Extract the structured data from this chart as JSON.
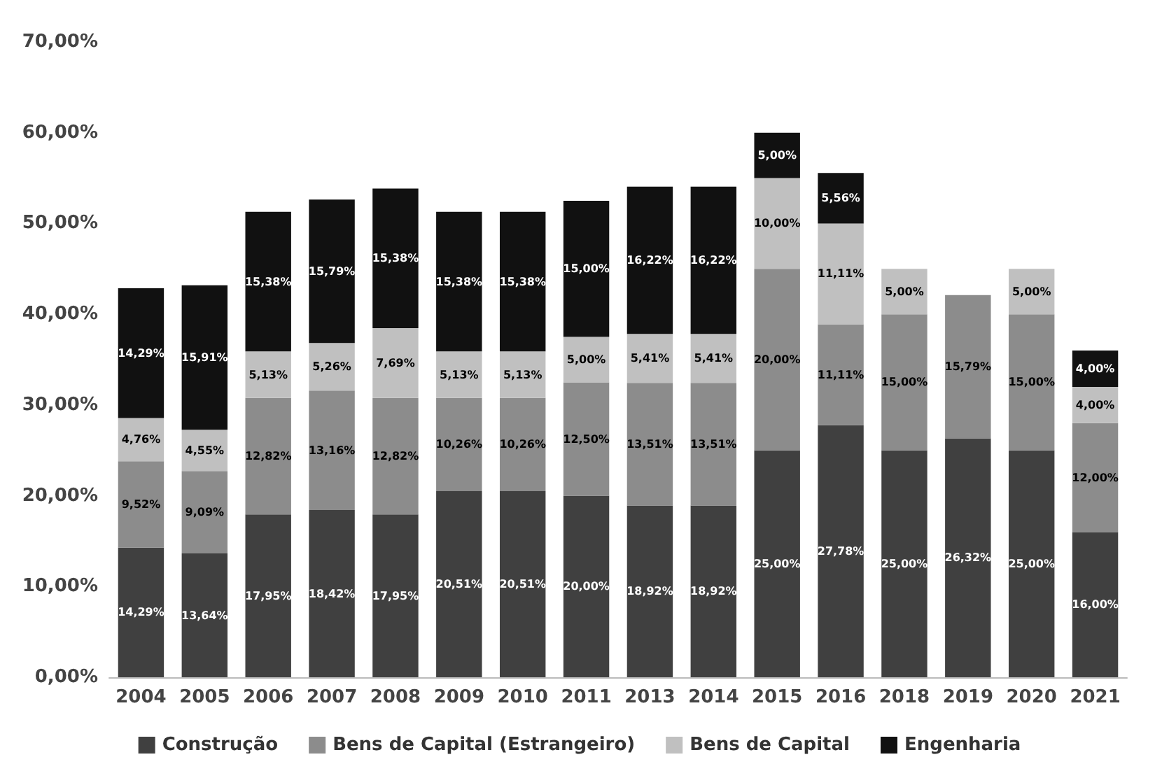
{
  "chart_data": {
    "type": "bar",
    "stacked": true,
    "categories": [
      "2004",
      "2005",
      "2006",
      "2007",
      "2008",
      "2009",
      "2010",
      "2011",
      "2013",
      "2014",
      "2015",
      "2016",
      "2018",
      "2019",
      "2020",
      "2021"
    ],
    "ylim": [
      0,
      70
    ],
    "yticks": [
      {
        "value": 0,
        "label": "0,00%"
      },
      {
        "value": 10,
        "label": "10,00%"
      },
      {
        "value": 20,
        "label": "20,00%"
      },
      {
        "value": 30,
        "label": "30,00%"
      },
      {
        "value": 40,
        "label": "40,00%"
      },
      {
        "value": 50,
        "label": "50,00%"
      },
      {
        "value": 60,
        "label": "60,00%"
      },
      {
        "value": 70,
        "label": "70,00%"
      }
    ],
    "grid": false,
    "legend": "bottom",
    "series": [
      {
        "name": "Construção",
        "color": "#404040",
        "values": [
          14.29,
          13.64,
          17.95,
          18.42,
          17.95,
          20.51,
          20.51,
          20.0,
          18.92,
          18.92,
          25.0,
          27.78,
          25.0,
          26.32,
          25.0,
          16.0
        ],
        "value_labels": [
          "14,29%",
          "13,64%",
          "17,95%",
          "18,42%",
          "17,95%",
          "20,51%",
          "20,51%",
          "20,00%",
          "18,92%",
          "18,92%",
          "25,00%",
          "27,78%",
          "25,00%",
          "26,32%",
          "25,00%",
          "16,00%"
        ]
      },
      {
        "name": "Bens de Capital (Estrangeiro)",
        "color": "#8c8c8c",
        "values": [
          9.52,
          9.09,
          12.82,
          13.16,
          12.82,
          10.26,
          10.26,
          12.5,
          13.51,
          13.51,
          20.0,
          11.11,
          15.0,
          15.79,
          15.0,
          12.0
        ],
        "value_labels": [
          "9,52%",
          "9,09%",
          "12,82%",
          "13,16%",
          "12,82%",
          "10,26%",
          "10,26%",
          "12,50%",
          "13,51%",
          "13,51%",
          "20,00%",
          "11,11%",
          "15,00%",
          "15,79%",
          "15,00%",
          "12,00%"
        ]
      },
      {
        "name": "Bens de Capital",
        "color": "#c0c0c0",
        "values": [
          4.76,
          4.55,
          5.13,
          5.26,
          7.69,
          5.13,
          5.13,
          5.0,
          5.41,
          5.41,
          10.0,
          11.11,
          5.0,
          null,
          5.0,
          4.0
        ],
        "value_labels": [
          "4,76%",
          "4,55%",
          "5,13%",
          "5,26%",
          "7,69%",
          "5,13%",
          "5,13%",
          "5,00%",
          "5,41%",
          "5,41%",
          "10,00%",
          "11,11%",
          "5,00%",
          null,
          "5,00%",
          "4,00%"
        ]
      },
      {
        "name": "Engenharia",
        "color": "#111111",
        "values": [
          14.29,
          15.91,
          15.38,
          15.79,
          15.38,
          15.38,
          15.38,
          15.0,
          16.22,
          16.22,
          5.0,
          5.56,
          null,
          null,
          null,
          4.0
        ],
        "value_labels": [
          "14,29%",
          "15,91%",
          "15,38%",
          "15,79%",
          "15,38%",
          "15,38%",
          "15,38%",
          "15,00%",
          "16,22%",
          "16,22%",
          "5,00%",
          "5,56%",
          null,
          null,
          null,
          "4,00%"
        ]
      }
    ]
  }
}
